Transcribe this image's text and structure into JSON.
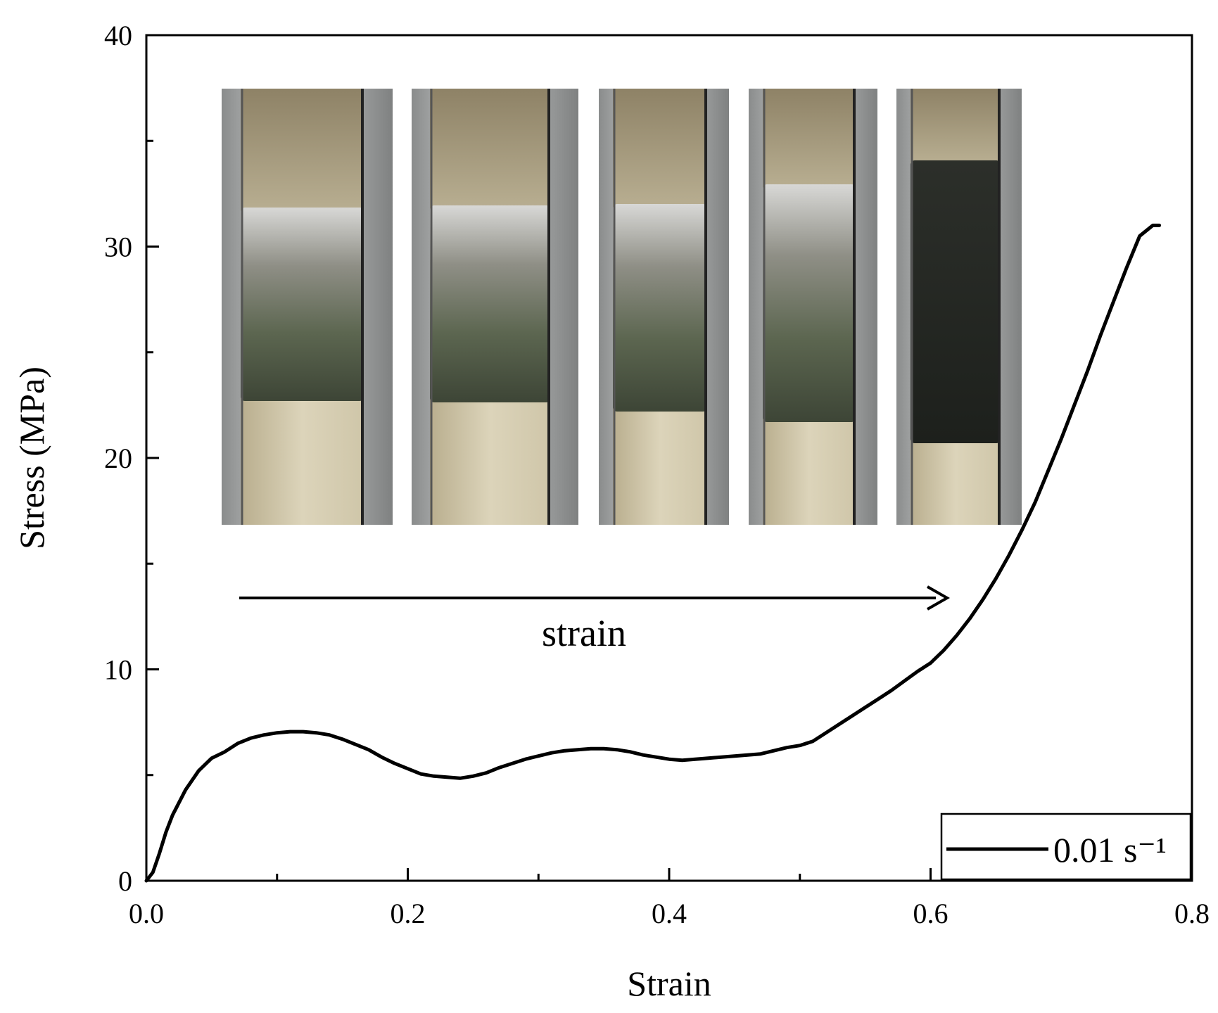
{
  "chart_data": {
    "type": "line",
    "title": "",
    "xlabel": "Strain",
    "ylabel": "Stress (MPa)",
    "xlim": [
      0.0,
      0.8
    ],
    "ylim": [
      0,
      40
    ],
    "x_ticks": [
      "0.0",
      "0.2",
      "0.4",
      "0.6",
      "0.8"
    ],
    "y_ticks": [
      "0",
      "10",
      "20",
      "30",
      "40"
    ],
    "grid": false,
    "legend": {
      "position": "bottom-right",
      "entries": [
        "0.01 s⁻¹"
      ]
    },
    "annotation": {
      "text": "strain",
      "arrow": "left-to-right"
    },
    "inset_images": 5,
    "series": [
      {
        "name": "0.01 s⁻¹",
        "color": "#000000",
        "x": [
          0.0,
          0.005,
          0.01,
          0.015,
          0.02,
          0.03,
          0.04,
          0.05,
          0.06,
          0.07,
          0.08,
          0.09,
          0.1,
          0.11,
          0.12,
          0.13,
          0.14,
          0.15,
          0.16,
          0.17,
          0.18,
          0.19,
          0.2,
          0.21,
          0.22,
          0.23,
          0.24,
          0.25,
          0.26,
          0.27,
          0.28,
          0.29,
          0.3,
          0.31,
          0.32,
          0.33,
          0.34,
          0.35,
          0.36,
          0.37,
          0.38,
          0.39,
          0.4,
          0.41,
          0.42,
          0.43,
          0.44,
          0.45,
          0.46,
          0.47,
          0.48,
          0.49,
          0.5,
          0.51,
          0.52,
          0.53,
          0.54,
          0.55,
          0.56,
          0.57,
          0.58,
          0.59,
          0.6,
          0.61,
          0.62,
          0.63,
          0.64,
          0.65,
          0.66,
          0.67,
          0.68,
          0.69,
          0.7,
          0.71,
          0.72,
          0.73,
          0.74,
          0.75,
          0.76,
          0.77,
          0.775
        ],
        "y": [
          0.0,
          0.4,
          1.3,
          2.3,
          3.1,
          4.3,
          5.2,
          5.8,
          6.1,
          6.5,
          6.75,
          6.9,
          7.0,
          7.05,
          7.05,
          7.0,
          6.9,
          6.7,
          6.45,
          6.2,
          5.85,
          5.55,
          5.3,
          5.05,
          4.95,
          4.9,
          4.85,
          4.95,
          5.1,
          5.35,
          5.55,
          5.75,
          5.9,
          6.05,
          6.15,
          6.2,
          6.25,
          6.25,
          6.2,
          6.1,
          5.95,
          5.85,
          5.75,
          5.7,
          5.75,
          5.8,
          5.85,
          5.9,
          5.95,
          6.0,
          6.15,
          6.3,
          6.4,
          6.6,
          7.0,
          7.4,
          7.8,
          8.2,
          8.6,
          9.0,
          9.45,
          9.9,
          10.3,
          10.9,
          11.6,
          12.4,
          13.3,
          14.3,
          15.4,
          16.6,
          17.9,
          19.4,
          20.9,
          22.5,
          24.1,
          25.8,
          27.4,
          29.0,
          30.5,
          31.0,
          31.0
        ]
      }
    ]
  }
}
